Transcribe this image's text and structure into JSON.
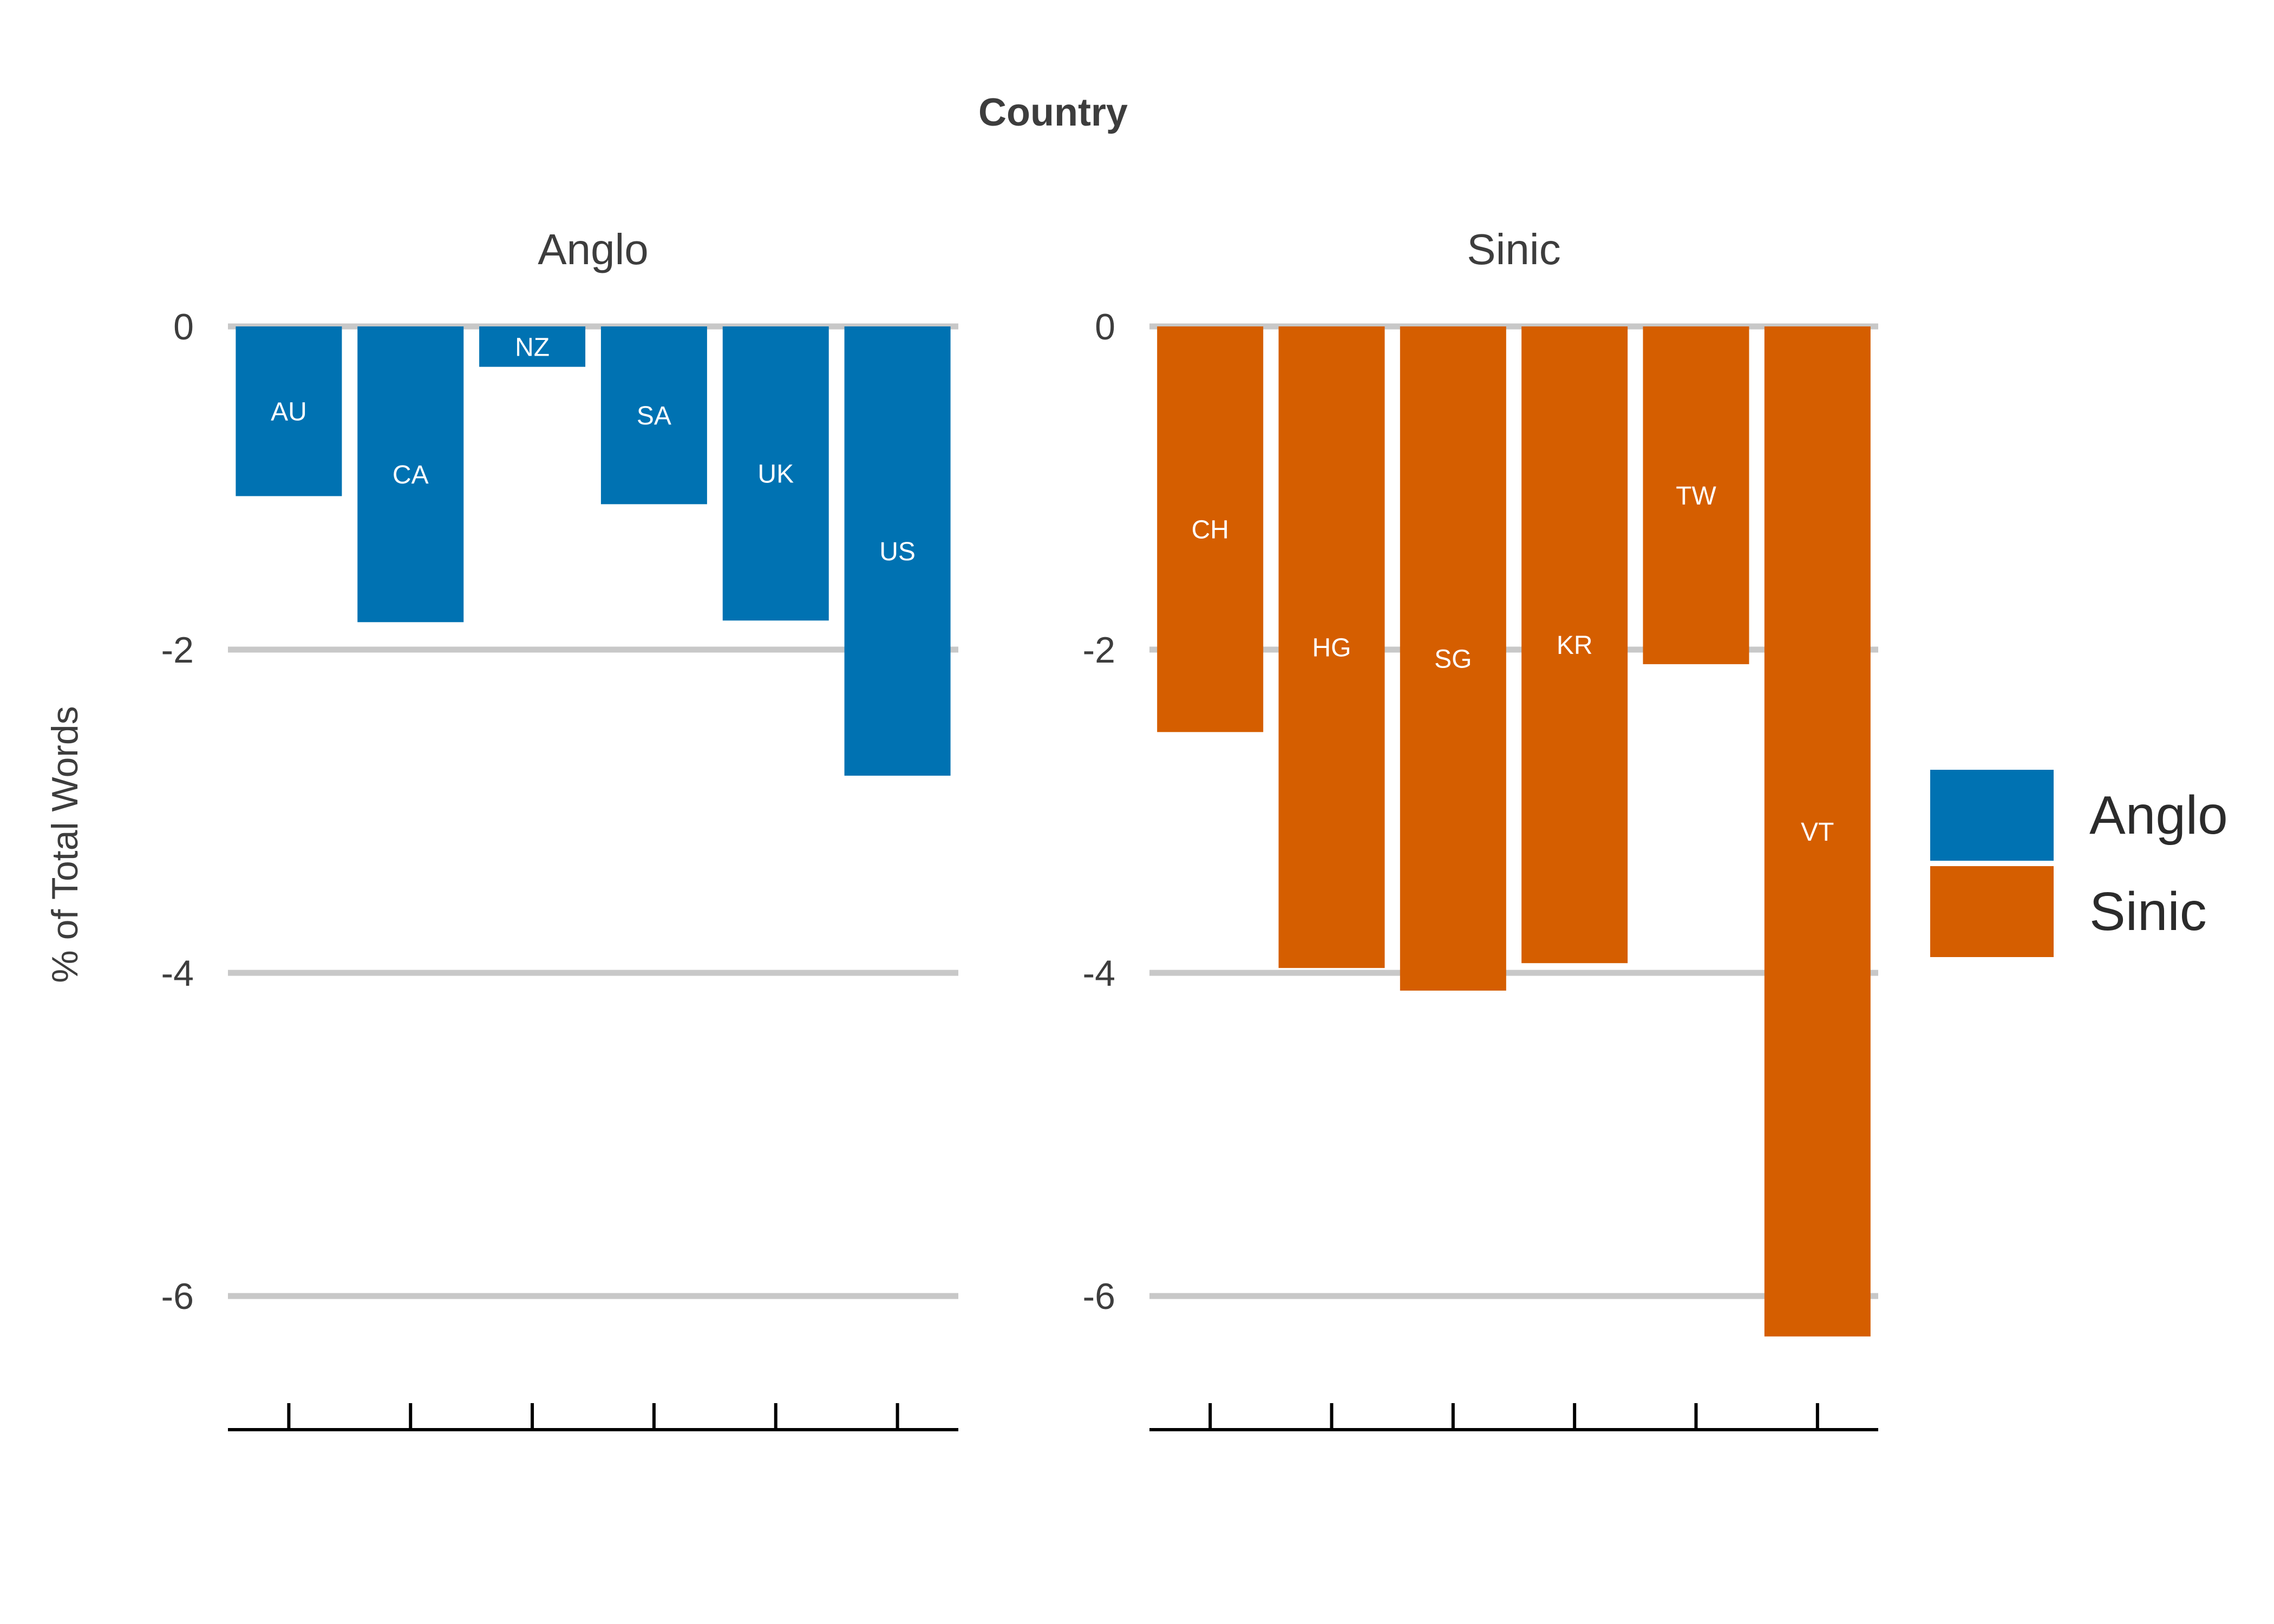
{
  "chart_data": {
    "type": "bar",
    "title": "Country",
    "ylabel": "% of Total Words",
    "xlabel": "",
    "ylim": [
      -6.8,
      0
    ],
    "yticks": [
      0,
      -2,
      -4,
      -6
    ],
    "grid": true,
    "legend_position": "right",
    "facets": [
      {
        "name": "Anglo",
        "color": "#0072B2",
        "categories": [
          "AU",
          "CA",
          "NZ",
          "SA",
          "UK",
          "US"
        ],
        "values": [
          -1.05,
          -1.83,
          -0.25,
          -1.1,
          -1.82,
          -2.78
        ]
      },
      {
        "name": "Sinic",
        "color": "#D55E00",
        "categories": [
          "CH",
          "HG",
          "SG",
          "KR",
          "TW",
          "VT"
        ],
        "values": [
          -2.51,
          -3.97,
          -4.11,
          -3.94,
          -2.09,
          -6.25
        ]
      }
    ],
    "legend": [
      {
        "label": "Anglo",
        "color": "#0072B2"
      },
      {
        "label": "Sinic",
        "color": "#D55E00"
      }
    ]
  }
}
